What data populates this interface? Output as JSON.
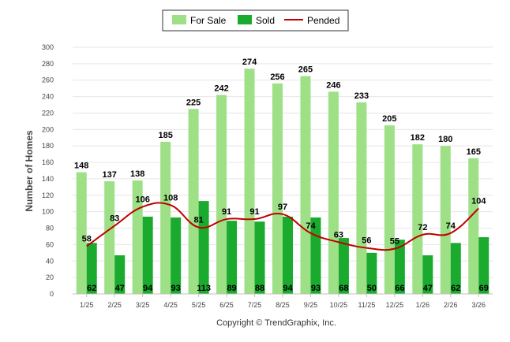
{
  "chart_data": {
    "type": "bar",
    "title": "",
    "xlabel": "",
    "ylabel": "Number of Homes",
    "ylim": [
      0,
      300
    ],
    "ytick_step": 20,
    "grid": true,
    "legend_position": "top-center",
    "categories": [
      "1/25",
      "2/25",
      "3/25",
      "4/25",
      "5/25",
      "6/25",
      "7/25",
      "8/25",
      "9/25",
      "10/25",
      "11/25",
      "12/25",
      "1/26",
      "2/26",
      "3/26"
    ],
    "series": [
      {
        "name": "For Sale",
        "kind": "bar",
        "color": "#9de086",
        "values": [
          148,
          137,
          138,
          185,
          225,
          242,
          274,
          256,
          265,
          246,
          233,
          205,
          182,
          180,
          165
        ]
      },
      {
        "name": "Sold",
        "kind": "bar",
        "color": "#1aab2e",
        "values": [
          62,
          47,
          94,
          93,
          113,
          89,
          88,
          94,
          93,
          68,
          50,
          66,
          47,
          62,
          69
        ]
      },
      {
        "name": "Pended",
        "kind": "line",
        "color": "#c00000",
        "values": [
          58,
          83,
          106,
          108,
          81,
          91,
          91,
          97,
          74,
          63,
          56,
          55,
          72,
          74,
          104
        ]
      }
    ],
    "copyright": "Copyright © TrendGraphix, Inc."
  }
}
